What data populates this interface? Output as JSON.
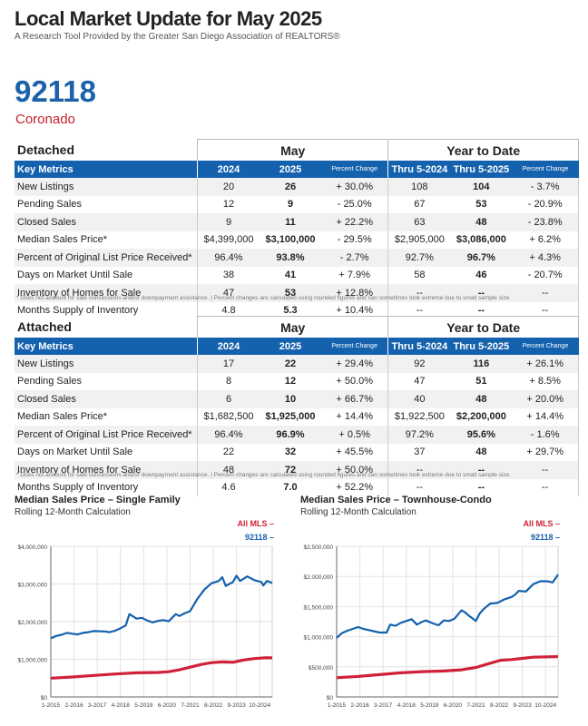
{
  "header": {
    "title": "Local Market Update for May 2025",
    "subtitle": "A Research Tool Provided by the Greater San Diego Association of REALTORS®",
    "zip": "92118",
    "city": "Coronado"
  },
  "colors": {
    "blue": "#1461ad",
    "red": "#d0213a",
    "accent_red": "#c8202f"
  },
  "tables": [
    {
      "section": "Detached",
      "group_may": "May",
      "group_ytd": "Year to Date",
      "headers": [
        "Key Metrics",
        "2024",
        "2025",
        "Percent Change",
        "Thru 5-2024",
        "Thru 5-2025",
        "Percent Change"
      ],
      "rows": [
        [
          "New Listings",
          "20",
          "26",
          "+ 30.0%",
          "108",
          "104",
          "- 3.7%"
        ],
        [
          "Pending Sales",
          "12",
          "9",
          "- 25.0%",
          "67",
          "53",
          "- 20.9%"
        ],
        [
          "Closed Sales",
          "9",
          "11",
          "+ 22.2%",
          "63",
          "48",
          "- 23.8%"
        ],
        [
          "Median Sales Price*",
          "$4,399,000",
          "$3,100,000",
          "- 29.5%",
          "$2,905,000",
          "$3,086,000",
          "+ 6.2%"
        ],
        [
          "Percent of Original List Price Received*",
          "96.4%",
          "93.8%",
          "- 2.7%",
          "92.7%",
          "96.7%",
          "+ 4.3%"
        ],
        [
          "Days on Market Until Sale",
          "38",
          "41",
          "+ 7.9%",
          "58",
          "46",
          "- 20.7%"
        ],
        [
          "Inventory of Homes for Sale",
          "47",
          "53",
          "+ 12.8%",
          "--",
          "--",
          "--"
        ],
        [
          "Months Supply of Inventory",
          "4.8",
          "5.3",
          "+ 10.4%",
          "--",
          "--",
          "--"
        ]
      ],
      "note": "* Does not account for sale concessions and/or downpayment assistance.  |  Percent changes are calculated using rounded figures and can sometimes look extreme due to small sample size."
    },
    {
      "section": "Attached",
      "group_may": "May",
      "group_ytd": "Year to Date",
      "headers": [
        "Key Metrics",
        "2024",
        "2025",
        "Percent Change",
        "Thru 5-2024",
        "Thru 5-2025",
        "Percent Change"
      ],
      "rows": [
        [
          "New Listings",
          "17",
          "22",
          "+ 29.4%",
          "92",
          "116",
          "+ 26.1%"
        ],
        [
          "Pending Sales",
          "8",
          "12",
          "+ 50.0%",
          "47",
          "51",
          "+ 8.5%"
        ],
        [
          "Closed Sales",
          "6",
          "10",
          "+ 66.7%",
          "40",
          "48",
          "+ 20.0%"
        ],
        [
          "Median Sales Price*",
          "$1,682,500",
          "$1,925,000",
          "+ 14.4%",
          "$1,922,500",
          "$2,200,000",
          "+ 14.4%"
        ],
        [
          "Percent of Original List Price Received*",
          "96.4%",
          "96.9%",
          "+ 0.5%",
          "97.2%",
          "95.6%",
          "- 1.6%"
        ],
        [
          "Days on Market Until Sale",
          "22",
          "32",
          "+ 45.5%",
          "37",
          "48",
          "+ 29.7%"
        ],
        [
          "Inventory of Homes for Sale",
          "48",
          "72",
          "+ 50.0%",
          "--",
          "--",
          "--"
        ],
        [
          "Months Supply of Inventory",
          "4.6",
          "7.0",
          "+ 52.2%",
          "--",
          "--",
          "--"
        ]
      ],
      "note": "* Does not account for sale concessions and/or downpayment assistance.  |  Percent changes are calculated using rounded figures and can sometimes look extreme due to small sample size."
    }
  ],
  "chart_data": [
    {
      "type": "line",
      "title": "Median Sales Price – Single Family",
      "subtitle": "Rolling 12-Month Calculation",
      "x_unit": "months since 1-2015",
      "xticks": [
        0,
        13,
        26,
        39,
        52,
        65,
        78,
        91,
        104,
        117
      ],
      "xtick_labels": [
        "1-2015",
        "2-2016",
        "3-2017",
        "4-2018",
        "5-2019",
        "6-2020",
        "7-2021",
        "8-2022",
        "9-2023",
        "10-2024"
      ],
      "xlim": [
        0,
        124
      ],
      "ylim": [
        0,
        4000000
      ],
      "yticks": [
        0,
        1000000,
        2000000,
        3000000,
        4000000
      ],
      "ytick_labels": [
        "$0",
        "$1,000,000",
        "$2,000,000",
        "$3,000,000",
        "$4,000,000"
      ],
      "legend": "top-right",
      "grid": true,
      "series": [
        {
          "name": "All MLS",
          "color": "#d0213a",
          "x": [
            0,
            12,
            24,
            36,
            48,
            60,
            66,
            72,
            78,
            84,
            90,
            96,
            102,
            108,
            114,
            120,
            124
          ],
          "y": [
            500000,
            530000,
            570000,
            610000,
            640000,
            650000,
            670000,
            720000,
            790000,
            860000,
            910000,
            930000,
            920000,
            980000,
            1020000,
            1040000,
            1040000
          ]
        },
        {
          "name": "92118",
          "color": "#1461ad",
          "x": [
            0,
            3,
            6,
            9,
            12,
            15,
            18,
            21,
            24,
            30,
            33,
            36,
            38,
            42,
            44,
            48,
            51,
            54,
            57,
            60,
            63,
            66,
            70,
            72,
            74,
            78,
            82,
            86,
            90,
            94,
            96,
            98,
            102,
            104,
            106,
            110,
            114,
            118,
            119,
            121,
            124
          ],
          "y": [
            1560000,
            1620000,
            1650000,
            1700000,
            1680000,
            1660000,
            1700000,
            1720000,
            1750000,
            1740000,
            1720000,
            1760000,
            1800000,
            1900000,
            2200000,
            2080000,
            2100000,
            2030000,
            1980000,
            2020000,
            2040000,
            2010000,
            2200000,
            2150000,
            2200000,
            2280000,
            2600000,
            2850000,
            3020000,
            3080000,
            3180000,
            2950000,
            3050000,
            3220000,
            3080000,
            3200000,
            3100000,
            3050000,
            2960000,
            3080000,
            3030000
          ]
        }
      ]
    },
    {
      "type": "line",
      "title": "Median Sales Price – Townhouse-Condo",
      "subtitle": "Rolling 12-Month Calculation",
      "x_unit": "months since 1-2015",
      "xticks": [
        0,
        13,
        26,
        39,
        52,
        65,
        78,
        91,
        104,
        117
      ],
      "xtick_labels": [
        "1-2015",
        "2-2016",
        "3-2017",
        "4-2018",
        "5-2019",
        "6-2020",
        "7-2021",
        "8-2022",
        "9-2023",
        "10-2024"
      ],
      "xlim": [
        0,
        124
      ],
      "ylim": [
        0,
        2500000
      ],
      "yticks": [
        0,
        500000,
        1000000,
        1500000,
        2000000,
        2500000
      ],
      "ytick_labels": [
        "$0",
        "$500,000",
        "$1,000,000",
        "$1,500,000",
        "$2,000,000",
        "$2,500,000"
      ],
      "legend": "top-right",
      "grid": true,
      "series": [
        {
          "name": "All MLS",
          "color": "#d0213a",
          "x": [
            0,
            12,
            24,
            36,
            48,
            60,
            70,
            78,
            86,
            92,
            98,
            104,
            110,
            124
          ],
          "y": [
            320000,
            340000,
            370000,
            400000,
            420000,
            430000,
            450000,
            490000,
            560000,
            610000,
            620000,
            640000,
            660000,
            670000
          ]
        },
        {
          "name": "92118",
          "color": "#1461ad",
          "x": [
            0,
            3,
            6,
            9,
            12,
            15,
            18,
            24,
            28,
            30,
            33,
            36,
            42,
            45,
            48,
            50,
            54,
            57,
            60,
            63,
            66,
            70,
            72,
            74,
            78,
            80,
            82,
            86,
            90,
            94,
            98,
            100,
            102,
            106,
            110,
            114,
            118,
            121,
            124
          ],
          "y": [
            980000,
            1060000,
            1100000,
            1130000,
            1160000,
            1130000,
            1110000,
            1070000,
            1070000,
            1200000,
            1180000,
            1230000,
            1290000,
            1200000,
            1250000,
            1270000,
            1220000,
            1190000,
            1270000,
            1260000,
            1300000,
            1440000,
            1400000,
            1350000,
            1260000,
            1380000,
            1450000,
            1550000,
            1560000,
            1620000,
            1660000,
            1700000,
            1760000,
            1750000,
            1870000,
            1920000,
            1920000,
            1900000,
            2030000
          ]
        }
      ]
    }
  ]
}
